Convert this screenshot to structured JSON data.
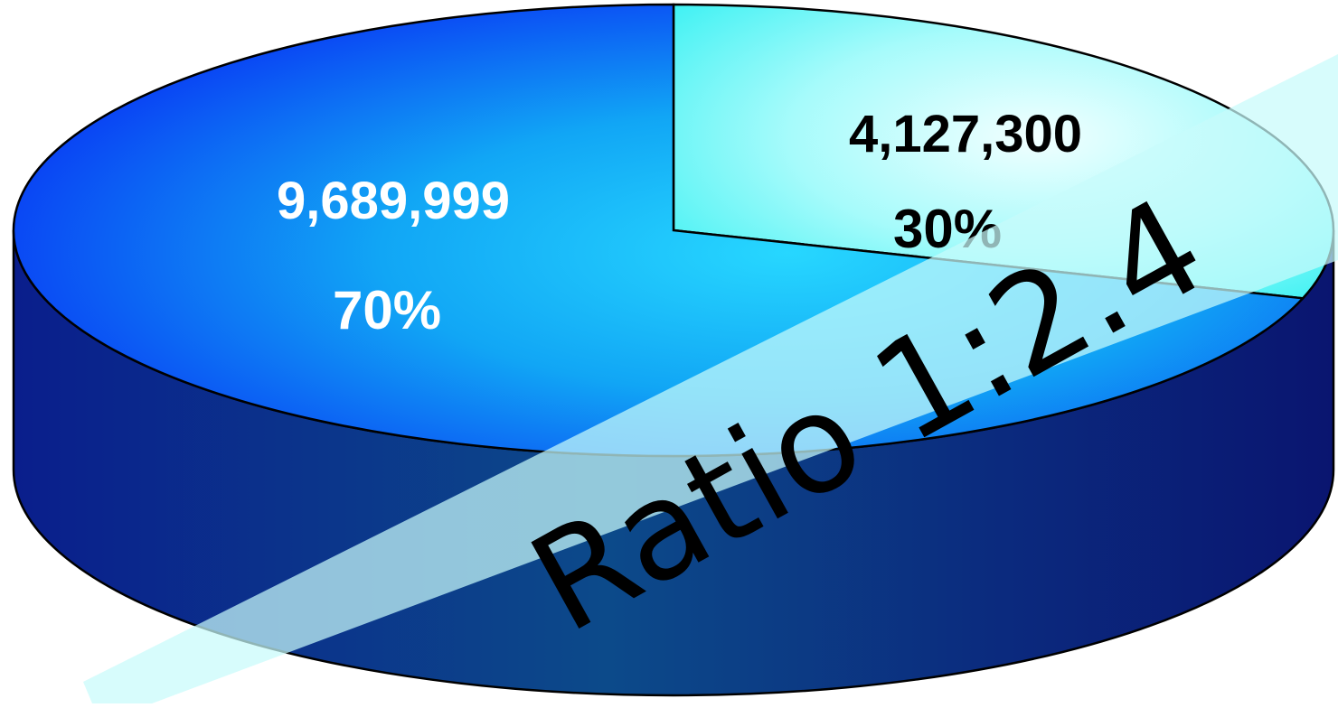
{
  "chart_data": {
    "type": "pie",
    "title": "",
    "slices": [
      {
        "value": 9689999,
        "value_label": "9,689,999",
        "percent_label": "70%",
        "color": "#0a2cf5",
        "highlight": "#1fd0ff",
        "label_color": "#ffffff"
      },
      {
        "value": 4127300,
        "value_label": "4,127,300",
        "percent_label": "30%",
        "color": "#33f5f5",
        "highlight": "#eaffff",
        "label_color": "#000000"
      }
    ],
    "side_color": "#0a1f7a",
    "style": "3d",
    "legend": "none",
    "annotation": {
      "text": "Ratio 1:2.4",
      "fill": "#c8fbfb"
    }
  }
}
